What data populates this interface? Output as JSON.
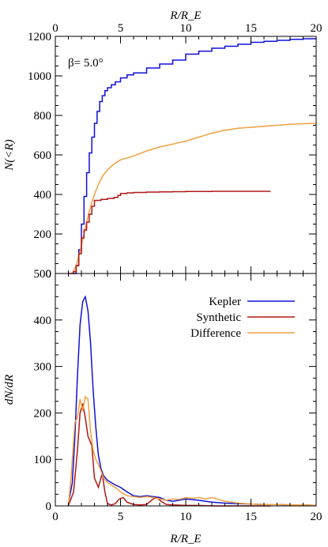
{
  "chart_data": [
    {
      "type": "line",
      "panel": "top",
      "annotation": "β= 5.0°",
      "ylabel": "N(<R)",
      "xlabel_top": "R/R_E",
      "xlim": [
        0,
        20
      ],
      "ylim": [
        0,
        1200
      ],
      "x_ticks": [
        0,
        5,
        10,
        15,
        20
      ],
      "y_ticks": [
        0,
        200,
        400,
        600,
        800,
        1000,
        1200
      ],
      "series": [
        {
          "color": "#1010d8",
          "step": true,
          "x": [
            1.4,
            1.6,
            1.8,
            2.0,
            2.2,
            2.4,
            2.6,
            2.8,
            3.0,
            3.2,
            3.4,
            3.6,
            3.8,
            4.0,
            4.3,
            4.6,
            5.0,
            5.5,
            6.0,
            7.0,
            8.0,
            9.0,
            10.0,
            11.0,
            12.0,
            13.0,
            14.0,
            15.0,
            16.0,
            17.0,
            18.0,
            19.0,
            20.0
          ],
          "y": [
            0,
            40,
            120,
            250,
            390,
            510,
            610,
            690,
            760,
            820,
            870,
            900,
            925,
            940,
            955,
            970,
            990,
            1005,
            1015,
            1040,
            1060,
            1080,
            1110,
            1125,
            1140,
            1150,
            1160,
            1170,
            1175,
            1180,
            1185,
            1188,
            1190
          ]
        },
        {
          "color": "#f0a040",
          "step": false,
          "x": [
            1.3,
            1.6,
            1.9,
            2.2,
            2.5,
            2.8,
            3.0,
            3.3,
            3.6,
            4.0,
            4.5,
            5.0,
            5.5,
            6.0,
            7.0,
            8.0,
            9.0,
            10.0,
            11.0,
            12.0,
            13.0,
            14.0,
            15.0,
            16.0,
            17.0,
            18.0,
            19.0,
            20.0
          ],
          "y": [
            0,
            40,
            110,
            200,
            290,
            360,
            400,
            450,
            490,
            525,
            555,
            575,
            585,
            595,
            620,
            640,
            655,
            670,
            690,
            710,
            725,
            735,
            740,
            745,
            750,
            755,
            758,
            760
          ]
        },
        {
          "color": "#b01818",
          "step": true,
          "x": [
            1.0,
            1.4,
            1.6,
            1.8,
            2.0,
            2.2,
            2.4,
            2.6,
            2.8,
            3.0,
            3.5,
            4.0,
            4.5,
            4.8,
            5.0,
            5.5,
            6.0,
            7.0,
            8.0,
            9.0,
            10.0,
            12.0,
            14.0,
            16.5
          ],
          "y": [
            0,
            10,
            40,
            100,
            180,
            220,
            260,
            300,
            340,
            370,
            375,
            380,
            385,
            395,
            405,
            408,
            410,
            412,
            413,
            414,
            415,
            416,
            416,
            416
          ]
        }
      ]
    },
    {
      "type": "line",
      "panel": "bottom",
      "ylabel": "dN/dR",
      "xlabel": "R/R_E",
      "xlim": [
        0,
        20
      ],
      "ylim": [
        0,
        500
      ],
      "x_ticks": [
        0,
        5,
        10,
        15,
        20
      ],
      "y_ticks": [
        0,
        100,
        200,
        300,
        400,
        500
      ],
      "legend_position": "top-right",
      "series": [
        {
          "name": "Kepler",
          "color": "#1010d8",
          "x": [
            1.0,
            1.3,
            1.5,
            1.7,
            1.9,
            2.1,
            2.3,
            2.5,
            2.7,
            2.9,
            3.1,
            3.3,
            3.5,
            3.7,
            4.0,
            4.3,
            4.6,
            5.0,
            5.5,
            6.0,
            6.5,
            7.0,
            7.5,
            8.0,
            8.5,
            9.0,
            9.5,
            10.0,
            11.0,
            12.0,
            13.0,
            14.0,
            15.0,
            16.0,
            17.0,
            18.0,
            19.0,
            20.0
          ],
          "y": [
            5,
            50,
            150,
            280,
            390,
            440,
            450,
            420,
            350,
            250,
            170,
            110,
            80,
            65,
            55,
            50,
            45,
            40,
            30,
            22,
            20,
            22,
            20,
            18,
            12,
            10,
            12,
            15,
            12,
            8,
            6,
            5,
            4,
            3,
            3,
            2,
            2,
            1
          ]
        },
        {
          "name": "Synthetic",
          "color": "#b01818",
          "x": [
            1.0,
            1.4,
            1.7,
            1.9,
            2.1,
            2.3,
            2.5,
            2.8,
            3.0,
            3.3,
            3.6,
            3.8,
            4.0,
            4.3,
            4.6,
            4.9,
            5.2,
            5.5,
            6.0,
            6.5,
            7.0,
            7.5,
            7.8,
            8.1,
            8.5,
            9.0,
            10.0,
            11.0,
            12.0,
            14.0,
            16.5
          ],
          "y": [
            0,
            30,
            120,
            200,
            220,
            190,
            150,
            130,
            60,
            40,
            70,
            30,
            5,
            2,
            5,
            15,
            18,
            8,
            3,
            2,
            3,
            15,
            18,
            10,
            3,
            2,
            1,
            1,
            0,
            0,
            0
          ]
        },
        {
          "name": "Difference",
          "color": "#f0a040",
          "x": [
            1.0,
            1.2,
            1.5,
            1.7,
            1.9,
            2.1,
            2.3,
            2.5,
            2.7,
            2.9,
            3.1,
            3.3,
            3.5,
            3.7,
            4.0,
            4.3,
            4.6,
            5.0,
            5.5,
            6.0,
            6.5,
            7.0,
            7.5,
            8.0,
            8.5,
            9.0,
            9.5,
            10.0,
            10.5,
            11.0,
            11.5,
            12.0,
            12.5,
            13.0,
            13.5,
            14.0,
            15.0,
            16.0,
            17.0,
            18.0,
            19.0,
            20.0
          ],
          "y": [
            0,
            60,
            180,
            190,
            230,
            205,
            235,
            230,
            160,
            120,
            100,
            90,
            75,
            60,
            50,
            45,
            40,
            30,
            22,
            20,
            18,
            20,
            18,
            15,
            12,
            15,
            14,
            18,
            16,
            18,
            15,
            18,
            14,
            10,
            8,
            6,
            4,
            3,
            3,
            2,
            2,
            1
          ]
        }
      ]
    }
  ]
}
